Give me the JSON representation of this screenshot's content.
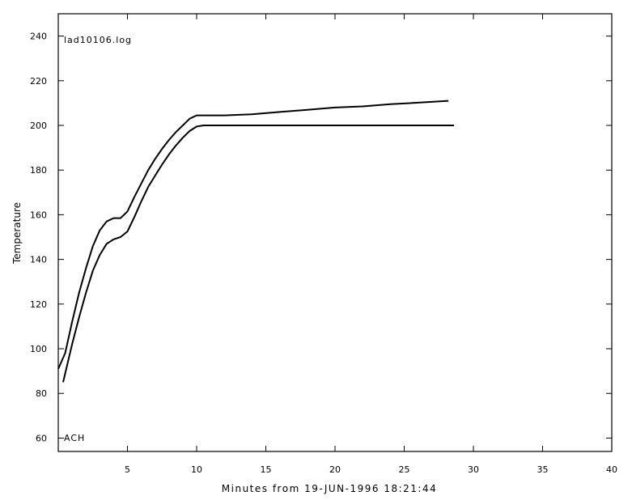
{
  "chart_data": {
    "type": "line",
    "title": "",
    "xlabel": "Minutes from 19-JUN-1996 18:21:44",
    "ylabel": "Temperature",
    "xlim": [
      0,
      40
    ],
    "ylim": [
      54,
      250
    ],
    "xticks": [
      5,
      10,
      15,
      20,
      25,
      30,
      35,
      40
    ],
    "yticks": [
      60,
      80,
      100,
      120,
      140,
      160,
      180,
      200,
      220,
      240
    ],
    "grid": false,
    "annotations": [
      "lad10106.log",
      "ACH"
    ],
    "series": [
      {
        "color": "#000000",
        "x": [
          0,
          0.5,
          1,
          1.5,
          2,
          2.5,
          3,
          3.5,
          4,
          4.5,
          5,
          5.5,
          6,
          6.5,
          7,
          7.5,
          8,
          8.5,
          9,
          9.5,
          10,
          10.5,
          12,
          14,
          16,
          18,
          20,
          22,
          24,
          26,
          28.2
        ],
        "y": [
          91,
          98,
          112,
          125,
          136,
          146,
          153,
          157,
          158.5,
          158.5,
          161.5,
          168,
          174,
          180,
          185,
          189.5,
          193.5,
          197,
          200,
          203,
          204.5,
          204.5,
          204.5,
          205,
          206,
          207,
          208,
          208.5,
          209.5,
          210.2,
          211
        ]
      },
      {
        "color": "#000000",
        "x": [
          0.35,
          1,
          1.5,
          2,
          2.5,
          3,
          3.5,
          4,
          4.5,
          5,
          5.5,
          6,
          6.5,
          7,
          7.5,
          8,
          8.5,
          9,
          9.5,
          10,
          10.5,
          12,
          15,
          20,
          25,
          28.6
        ],
        "y": [
          85,
          102,
          114,
          125,
          135,
          142,
          147,
          149,
          150,
          152.5,
          159,
          166,
          172.5,
          177.5,
          182.5,
          187,
          191,
          194.5,
          197.5,
          199.5,
          200,
          200,
          200,
          200,
          200,
          200
        ]
      }
    ]
  }
}
